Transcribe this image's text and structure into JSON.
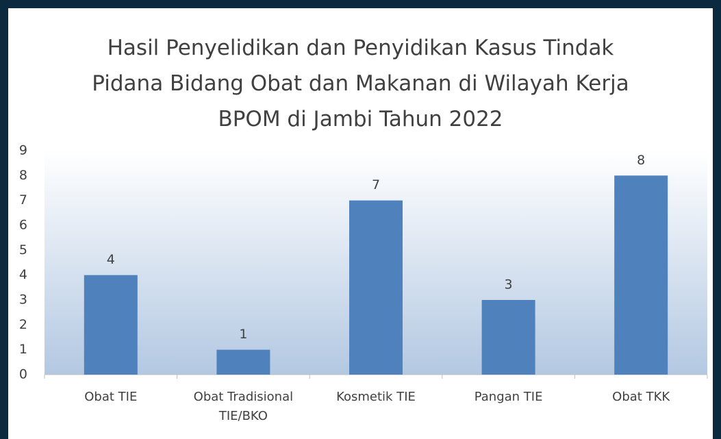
{
  "chart_data": {
    "type": "bar",
    "title": "Hasil Penyelidikan dan Penyidikan Kasus Tindak Pidana Bidang Obat dan Makanan di Wilayah Kerja BPOM di Jambi Tahun 2022",
    "categories": [
      "Obat TIE",
      "Obat Tradisional TIE/BKO",
      "Kosmetik TIE",
      "Pangan TIE",
      "Obat TKK"
    ],
    "values": [
      4,
      1,
      7,
      3,
      8
    ],
    "color": "#4f81bd",
    "ylim": [
      0,
      9
    ],
    "yticks": [
      0,
      1,
      2,
      3,
      4,
      5,
      6,
      7,
      8,
      9
    ],
    "grid": false
  }
}
